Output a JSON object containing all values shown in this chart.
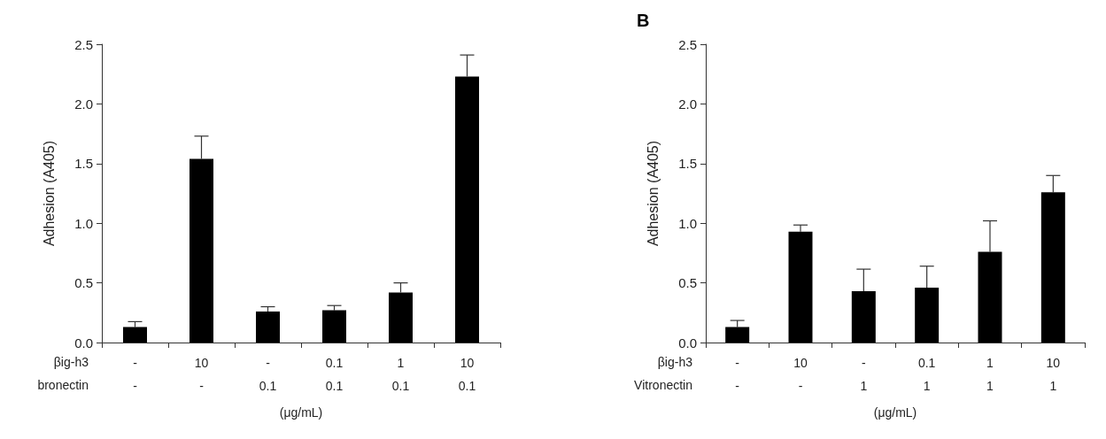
{
  "chart_data": [
    {
      "type": "bar",
      "ylabel": "Adhesion (A405)",
      "xlabel": "(μg/mL)",
      "categories": [
        "-\n-",
        "10\n-",
        "-\n0.1",
        "0.1\n0.1",
        "1\n0.1",
        "10\n0.1"
      ],
      "annotations": [
        "βig-h3",
        "bronectin"
      ],
      "values": [
        0.13,
        1.54,
        0.26,
        0.27,
        0.42,
        2.23
      ],
      "errors": [
        [
          0.13,
          0.175
        ],
        [
          1.54,
          1.73
        ],
        [
          0.26,
          0.3
        ],
        [
          0.27,
          0.31
        ],
        [
          0.42,
          0.5
        ],
        [
          2.23,
          2.41
        ]
      ],
      "color": "#000000",
      "ylim": [
        0,
        2.5
      ],
      "yticks": [
        {
          "value": 0,
          "label": "0.0"
        },
        0.5,
        {
          "value": 1,
          "label": "1.0"
        },
        1.5,
        {
          "value": 2,
          "label": "2.0"
        },
        2.5
      ],
      "grid": false
    },
    {
      "type": "bar",
      "title": "B",
      "ylabel": "Adhesion (A405)",
      "xlabel": "(μg/mL)",
      "categories": [
        "-\n-",
        "10\n-",
        "-\n1",
        "0.1\n1",
        "1\n1",
        "10\n1"
      ],
      "annotations": [
        "βig-h3",
        "Vitronectin"
      ],
      "values": [
        0.13,
        0.93,
        0.43,
        0.46,
        0.76,
        1.26
      ],
      "errors": [
        [
          0.13,
          0.185
        ],
        [
          0.93,
          0.985
        ],
        [
          0.43,
          0.615
        ],
        [
          0.46,
          0.64
        ],
        [
          0.76,
          1.02
        ],
        [
          1.26,
          1.4
        ]
      ],
      "color": "#000000",
      "ylim": [
        0,
        2.5
      ],
      "yticks": [
        {
          "value": 0,
          "label": "0.0"
        },
        0.5,
        {
          "value": 1,
          "label": "1.0"
        },
        1.5,
        {
          "value": 2,
          "label": "2.0"
        },
        2.5
      ],
      "grid": false
    }
  ]
}
